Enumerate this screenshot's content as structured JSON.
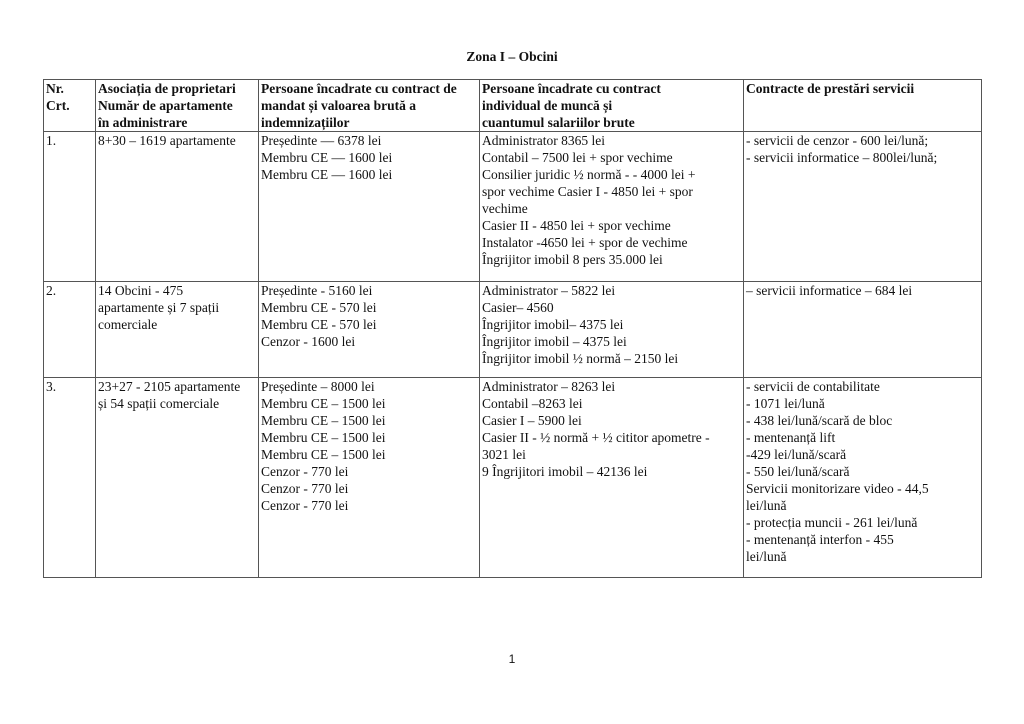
{
  "title": "Zona I – Obcini",
  "headers": [
    [
      "Nr.",
      "Crt."
    ],
    [
      "Asociația de proprietari",
      "Număr de apartamente",
      "în administrare"
    ],
    [
      "Persoane încadrate cu contract de",
      "mandat și valoarea brută a",
      "indemnizațiilor"
    ],
    [
      "Persoane încadrate cu contract",
      "individual de muncă și",
      "cuantumul salariilor brute"
    ],
    [
      "Contracte de prestări servicii"
    ]
  ],
  "rows": [
    {
      "nr": [
        "1."
      ],
      "asociatia": [
        "8+30 – 1619 apartamente"
      ],
      "mandat": [
        "Președinte — 6378 lei",
        "Membru CE — 1600 lei",
        "Membru CE — 1600 lei"
      ],
      "cim": [
        "Administrator 8365 lei",
        "Contabil – 7500 lei + spor vechime",
        "Consilier juridic ½ normă - - 4000 lei +",
        "spor vechime Casier I -  4850 lei + spor",
        "vechime",
        "Casier II - 4850 lei + spor vechime",
        "Instalator -4650 lei + spor de vechime",
        "Îngrijitor imobil 8 pers 35.000 lei"
      ],
      "servicii": [
        "- servicii de cenzor - 600 lei/lună;",
        "- servicii informatice – 800lei/lună;"
      ]
    },
    {
      "nr": [
        "2."
      ],
      "asociatia": [
        "14 Obcini - 475",
        "apartamente și 7 spații",
        "comerciale"
      ],
      "mandat": [
        "Președinte - 5160 lei",
        "Membru CE -  570 lei",
        "Membru CE -  570 lei",
        "Cenzor -  1600 lei"
      ],
      "cim": [
        "Administrator – 5822 lei",
        "Casier– 4560",
        "Îngrijitor imobil– 4375 lei",
        "Îngrijitor imobil – 4375 lei",
        "Îngrijitor imobil ½ normă – 2150 lei"
      ],
      "servicii": [
        "– servicii informatice – 684 lei"
      ]
    },
    {
      "nr": [
        "3."
      ],
      "asociatia": [
        "23+27 - 2105 apartamente",
        "și 54 spații comerciale"
      ],
      "mandat": [
        "Președinte –     8000 lei",
        "Membru CE – 1500 lei",
        "Membru CE – 1500 lei",
        "Membru CE – 1500 lei",
        "Membru CE – 1500 lei",
        "Cenzor -  770 lei",
        "Cenzor - 770 lei",
        "Cenzor -  770 lei"
      ],
      "cim": [
        "Administrator – 8263 lei",
        "Contabil –8263 lei",
        "Casier I – 5900 lei",
        "Casier II - ½ normă + ½ cititor apometre -",
        "3021 lei",
        " 9 Îngrijitori imobil – 42136 lei"
      ],
      "servicii": [
        "- servicii de contabilitate",
        "- 1071 lei/lună",
        "- 438 lei/lună/scară de bloc",
        "- mentenanță lift",
        "-429 lei/lună/scară",
        "- 550 lei/lună/scară",
        "Servicii monitorizare video - 44,5",
        "lei/lună",
        " - protecția muncii - 261 lei/lună",
        "- mentenanță interfon - 455",
        "lei/lună"
      ]
    }
  ],
  "page_number": "1"
}
